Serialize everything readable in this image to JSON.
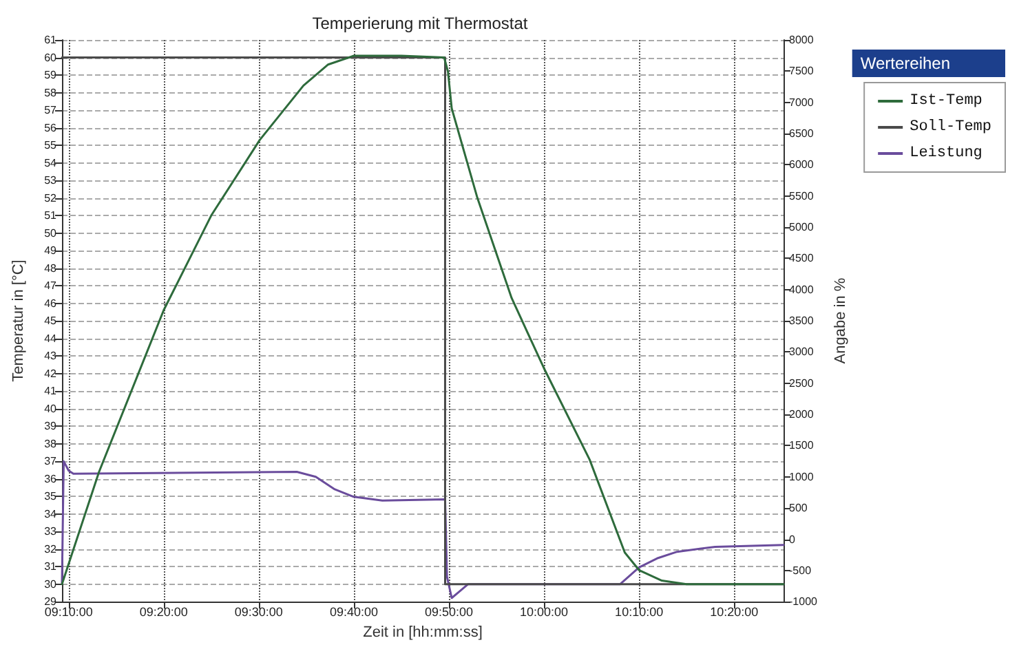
{
  "chart_data": {
    "type": "line",
    "title": "Temperierung mit Thermostat",
    "xlabel": "Zeit in [hh:mm:ss]",
    "ylabel": "Temperatur in [°C]",
    "y2label": "Angabe in %",
    "legend_title": "Wertereihen",
    "xlim": [
      9.155,
      10.42
    ],
    "xticks": [
      {
        "value": 9.1667,
        "label": "09:10:00"
      },
      {
        "value": 9.3333,
        "label": "09:20:00"
      },
      {
        "value": 9.5,
        "label": "09:30:00"
      },
      {
        "value": 9.6667,
        "label": "09:40:00"
      },
      {
        "value": 9.8333,
        "label": "09:50:00"
      },
      {
        "value": 10,
        "label": "10:00:00"
      },
      {
        "value": 10.1667,
        "label": "10:10:00"
      },
      {
        "value": 10.3333,
        "label": "10:20:00"
      }
    ],
    "ylim": [
      29,
      61
    ],
    "yticks": [
      29,
      30,
      31,
      32,
      33,
      34,
      35,
      36,
      37,
      38,
      39,
      40,
      41,
      42,
      43,
      44,
      45,
      46,
      47,
      48,
      49,
      50,
      51,
      52,
      53,
      54,
      55,
      56,
      57,
      58,
      59,
      60,
      61
    ],
    "y2lim": [
      -1000,
      8000
    ],
    "y2ticks": [
      -1000,
      -500,
      0,
      500,
      1000,
      1500,
      2000,
      2500,
      3000,
      3500,
      4000,
      4500,
      5000,
      5500,
      6000,
      6500,
      7000,
      7500,
      8000
    ],
    "grid": true,
    "legend": "right",
    "marker": "none",
    "line_style": "solid",
    "series": [
      {
        "name": "Ist-Temp",
        "color": "#2e6b3c",
        "x": [
          9.155,
          9.22,
          9.3333,
          9.4167,
          9.5017,
          9.5783,
          9.6217,
          9.6667,
          9.75,
          9.825,
          9.8317,
          9.8383,
          9.8833,
          9.9433,
          10.0,
          10.08,
          10.1417,
          10.1667,
          10.2067,
          10.25,
          10.42
        ],
        "values": [
          30,
          36.4,
          45.6,
          51,
          55.3,
          58.4,
          59.6,
          60.1,
          60.1,
          60.0,
          59.2,
          57.1,
          52,
          46.3,
          42.3,
          37.1,
          31.8,
          30.8,
          30.2,
          30.0,
          30.0
        ]
      },
      {
        "name": "Soll-Temp",
        "color": "#4a4a4a",
        "x": [
          9.155,
          9.8267,
          9.8267,
          10.42
        ],
        "values": [
          60,
          60,
          30,
          30
        ]
      },
      {
        "name": "Leistung",
        "color": "#6a4c9c",
        "axis": "y2",
        "x": [
          9.155,
          9.158,
          9.1667,
          9.175,
          9.5667,
          9.6,
          9.6333,
          9.6667,
          9.7167,
          9.8267,
          9.83,
          9.8383,
          9.85,
          9.8667,
          10.1333,
          10.1667,
          10.2,
          10.2333,
          10.3,
          10.42
        ],
        "values": [
          -700,
          1250,
          1100,
          1050,
          1080,
          1000,
          800,
          680,
          620,
          640,
          -600,
          -940,
          -850,
          -720,
          -720,
          -450,
          -300,
          -200,
          -120,
          -90
        ]
      }
    ]
  }
}
